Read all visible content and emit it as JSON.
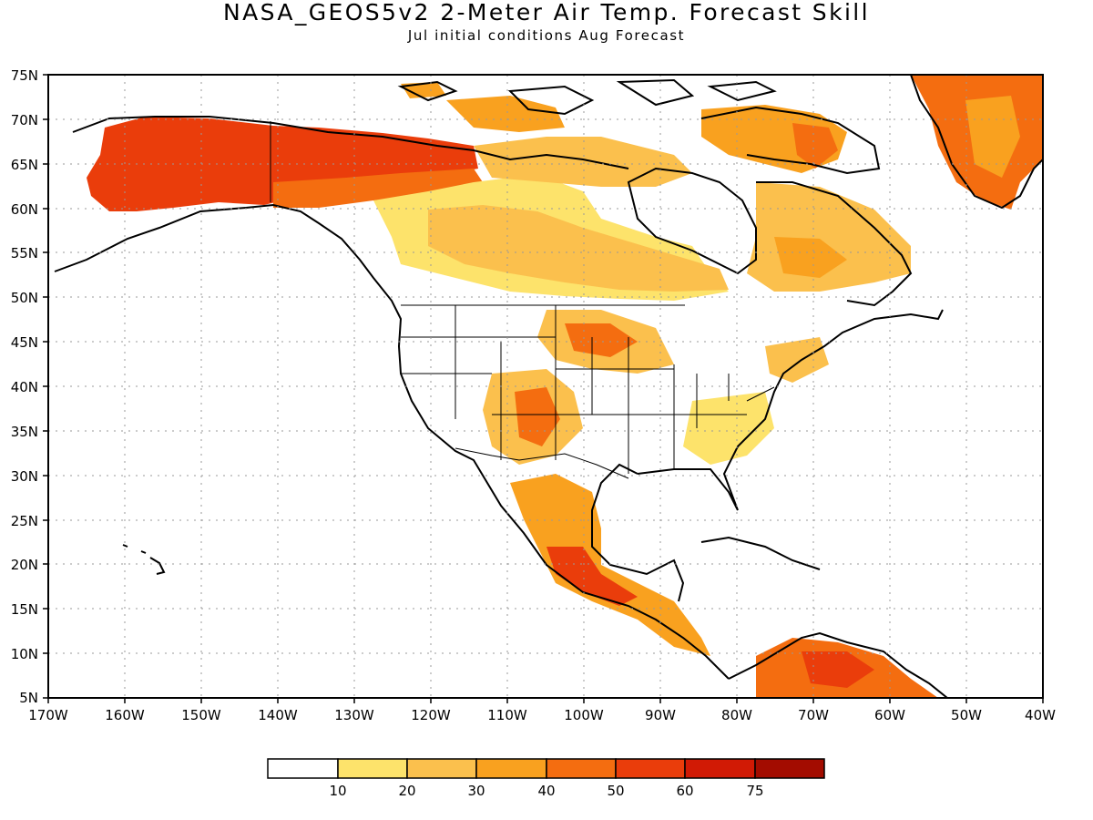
{
  "title": "NASA_GEOS5v2 2-Meter Air Temp. Forecast Skill",
  "subtitle": "Jul initial conditions  Aug Forecast",
  "map": {
    "lon_range": [
      -170,
      -40
    ],
    "lat_range": [
      5,
      75
    ],
    "x_ticks": [
      "170W",
      "160W",
      "150W",
      "140W",
      "130W",
      "120W",
      "110W",
      "100W",
      "90W",
      "80W",
      "70W",
      "60W",
      "50W",
      "40W"
    ],
    "y_ticks": [
      "75N",
      "70N",
      "65N",
      "60N",
      "55N",
      "50N",
      "45N",
      "40N",
      "35N",
      "30N",
      "25N",
      "20N",
      "15N",
      "10N",
      "5N"
    ],
    "grid": "dotted"
  },
  "colorbar": {
    "labels": [
      "10",
      "20",
      "30",
      "40",
      "50",
      "60",
      "75"
    ],
    "colors": [
      "#ffffff",
      "#fde36b",
      "#fbc04d",
      "#f9a11f",
      "#f46d10",
      "#ea3d0b",
      "#d11a05",
      "#a30c00"
    ]
  },
  "skill_colors": {
    "c1": "#fde36b",
    "c2": "#fbc04d",
    "c3": "#f9a11f",
    "c4": "#f46d10",
    "c5": "#ea3d0b",
    "c6": "#d11a05"
  }
}
